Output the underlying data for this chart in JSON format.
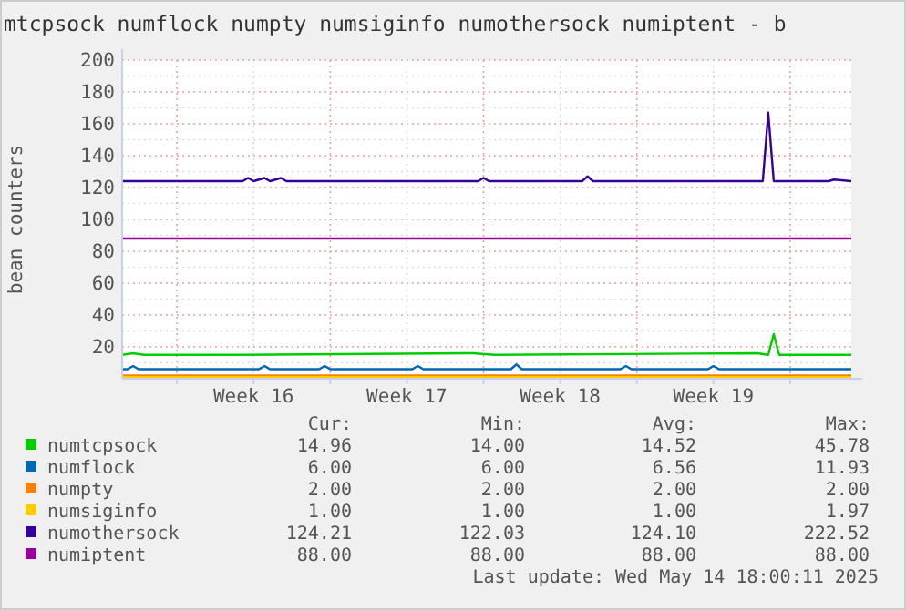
{
  "chart_data": {
    "type": "line",
    "title": "mtcpsock numflock numpty numsiginfo numothersock numiptent - b",
    "ylabel": "bean counters",
    "xlim": [
      "2025-04-11T12:00",
      "2025-05-14T19:00"
    ],
    "ylim": [
      0,
      200
    ],
    "xticks": [
      {
        "value": "2025-04-14T00:00",
        "label": null
      },
      {
        "value": "2025-04-17T12:00",
        "label": "Week 16"
      },
      {
        "value": "2025-04-21T00:00",
        "label": null
      },
      {
        "value": "2025-04-24T12:00",
        "label": "Week 17"
      },
      {
        "value": "2025-04-28T00:00",
        "label": null
      },
      {
        "value": "2025-05-01T12:00",
        "label": "Week 18"
      },
      {
        "value": "2025-05-05T00:00",
        "label": null
      },
      {
        "value": "2025-05-08T12:00",
        "label": "Week 19"
      },
      {
        "value": "2025-05-12T00:00",
        "label": null
      }
    ],
    "yticks": [
      {
        "value": 10,
        "label": null
      },
      20,
      {
        "value": 30,
        "label": null
      },
      40,
      {
        "value": 50,
        "label": null
      },
      60,
      {
        "value": 70,
        "label": null
      },
      80,
      {
        "value": 90,
        "label": null
      },
      100,
      {
        "value": 110,
        "label": null
      },
      120,
      {
        "value": 130,
        "label": null
      },
      140,
      {
        "value": 150,
        "label": null
      },
      160,
      {
        "value": 170,
        "label": null
      },
      180,
      {
        "value": 190,
        "label": null
      },
      200
    ],
    "grid": true,
    "legend": "bottom",
    "series": [
      {
        "name": "numtcpsock",
        "color": "#00cc00",
        "x": [
          "2025-04-11T12:00",
          "2025-04-12T00:00",
          "2025-04-12T12:00",
          "2025-04-16T12:00",
          "2025-04-17T00:00",
          "2025-04-27T12:00",
          "2025-04-28T12:00",
          "2025-05-10T12:00",
          "2025-05-11T00:00",
          "2025-05-11T06:00",
          "2025-05-11T12:00",
          "2025-05-14T19:00"
        ],
        "values": [
          15,
          16,
          15,
          15,
          15,
          16,
          15,
          16,
          15,
          28,
          15,
          15
        ]
      },
      {
        "name": "numflock",
        "color": "#0066b3",
        "x": [
          "2025-04-11T12:00",
          "2025-04-11T18:00",
          "2025-04-12T00:00",
          "2025-04-12T06:00",
          "2025-04-17T18:00",
          "2025-04-18T00:00",
          "2025-04-18T06:00",
          "2025-04-20T12:00",
          "2025-04-20T18:00",
          "2025-04-21T00:00",
          "2025-04-24T18:00",
          "2025-04-25T00:00",
          "2025-04-25T06:00",
          "2025-04-29T06:00",
          "2025-04-29T12:00",
          "2025-04-29T18:00",
          "2025-05-04T06:00",
          "2025-05-04T12:00",
          "2025-05-04T18:00",
          "2025-05-08T06:00",
          "2025-05-08T12:00",
          "2025-05-08T18:00",
          "2025-05-14T19:00"
        ],
        "values": [
          6,
          6,
          8,
          6,
          6,
          8,
          6,
          6,
          8,
          6,
          6,
          8,
          6,
          6,
          9,
          6,
          6,
          8,
          6,
          6,
          8,
          6,
          6
        ]
      },
      {
        "name": "numpty",
        "color": "#ff8000",
        "x": [
          "2025-04-11T12:00",
          "2025-05-14T19:00"
        ],
        "values": [
          2,
          2
        ]
      },
      {
        "name": "numsiginfo",
        "color": "#ffcc00",
        "x": [
          "2025-04-11T12:00",
          "2025-05-14T19:00"
        ],
        "values": [
          1,
          1
        ]
      },
      {
        "name": "numothersock",
        "color": "#330099",
        "x": [
          "2025-04-11T12:00",
          "2025-04-17T00:00",
          "2025-04-17T06:00",
          "2025-04-17T12:00",
          "2025-04-18T00:00",
          "2025-04-18T06:00",
          "2025-04-18T18:00",
          "2025-04-19T00:00",
          "2025-04-27T18:00",
          "2025-04-28T00:00",
          "2025-04-28T06:00",
          "2025-05-02T12:00",
          "2025-05-02T18:00",
          "2025-05-03T00:00",
          "2025-05-10T18:00",
          "2025-05-11T00:00",
          "2025-05-11T06:00",
          "2025-05-13T18:00",
          "2025-05-14T00:00",
          "2025-05-14T19:00"
        ],
        "values": [
          124,
          124,
          126,
          124,
          126,
          124,
          126,
          124,
          124,
          126,
          124,
          124,
          127,
          124,
          124,
          167,
          124,
          124,
          125,
          124
        ]
      },
      {
        "name": "numiptent",
        "color": "#990099",
        "x": [
          "2025-04-11T12:00",
          "2025-05-14T19:00"
        ],
        "values": [
          88,
          88
        ]
      }
    ],
    "annotations": [
      "Cur:",
      "Min:",
      "Avg:",
      "Max:",
      "14.96",
      "14.00",
      "14.52",
      "45.78",
      "6.00",
      "6.00",
      "6.56",
      "11.93",
      "2.00",
      "2.00",
      "2.00",
      "2.00",
      "1.00",
      "1.00",
      "1.00",
      "1.97",
      "124.21",
      "122.03",
      "124.10",
      "222.52",
      "88.00",
      "88.00",
      "88.00",
      "88.00",
      "Last update: Wed May 14 18:00:11 2025"
    ]
  }
}
